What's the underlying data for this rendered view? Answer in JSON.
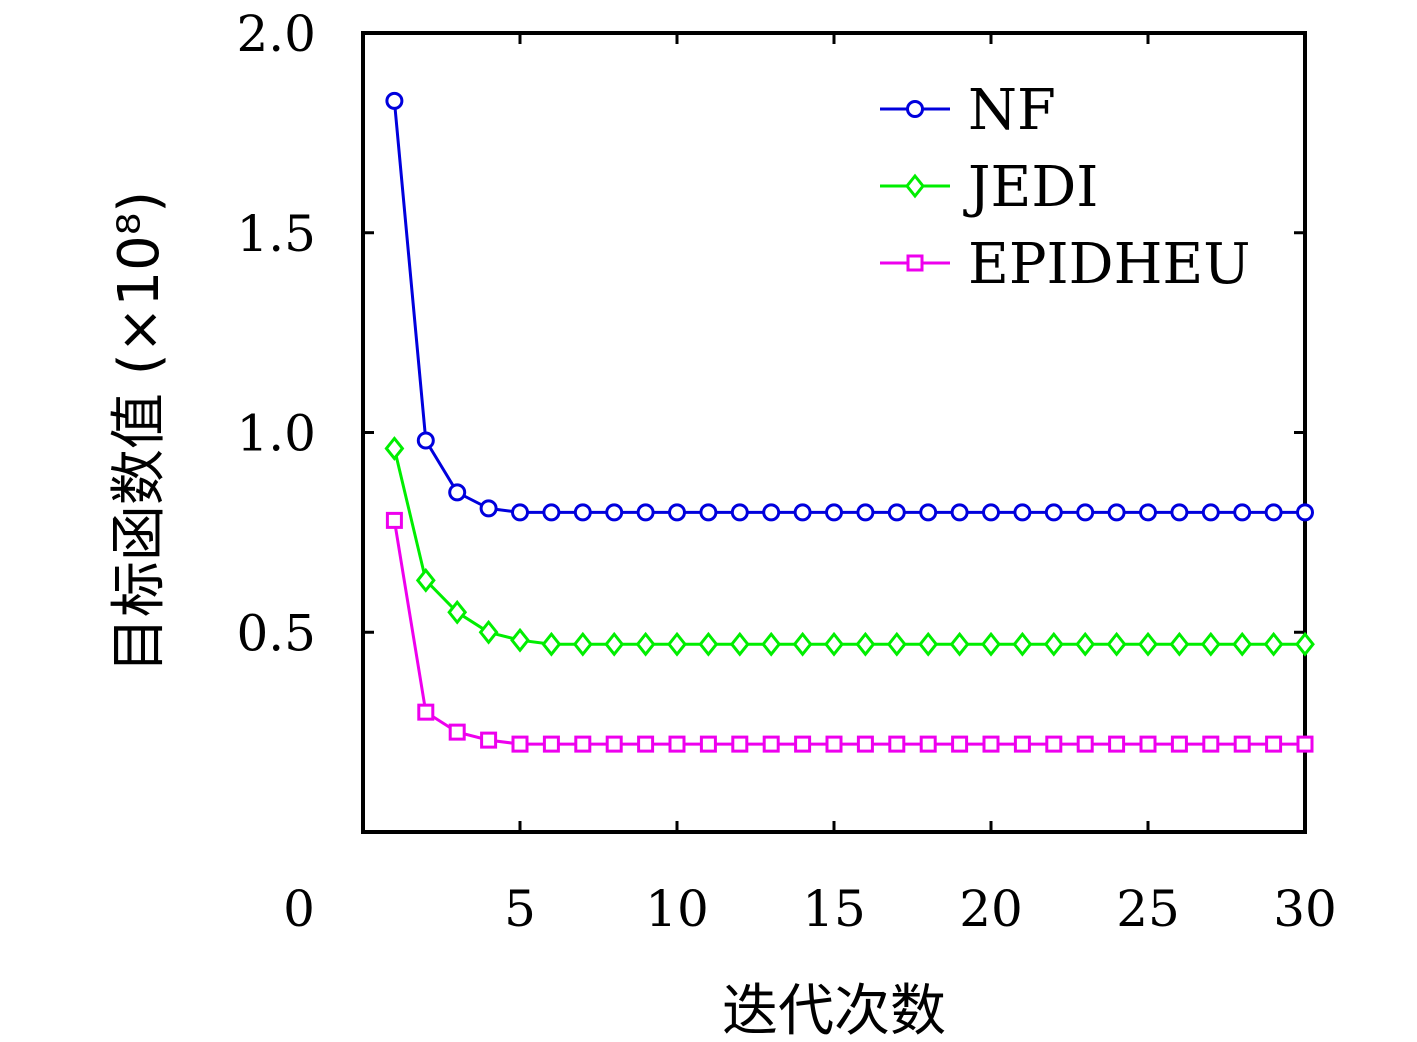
{
  "chart_data": {
    "type": "line",
    "xlabel": "迭代次数",
    "ylabel": "目标函数值 (×10⁸)",
    "xlim": [
      0,
      30
    ],
    "ylim": [
      0,
      2.0
    ],
    "x_ticks": [
      5,
      10,
      15,
      20,
      25,
      30
    ],
    "x_tick_labels": [
      "5",
      "10",
      "15",
      "20",
      "25",
      "30"
    ],
    "x_origin_label": "0",
    "y_ticks": [
      0.5,
      1.0,
      1.5,
      2.0
    ],
    "y_tick_labels": [
      "0.5",
      "1.0",
      "1.5",
      "2.0"
    ],
    "grid": false,
    "legend_position": "top-right",
    "x": [
      1,
      2,
      3,
      4,
      5,
      6,
      7,
      8,
      9,
      10,
      11,
      12,
      13,
      14,
      15,
      16,
      17,
      18,
      19,
      20,
      21,
      22,
      23,
      24,
      25,
      26,
      27,
      28,
      29,
      30
    ],
    "series": [
      {
        "name": "NF",
        "color": "#0000dd",
        "marker": "circle",
        "values": [
          1.83,
          0.98,
          0.85,
          0.81,
          0.8,
          0.8,
          0.8,
          0.8,
          0.8,
          0.8,
          0.8,
          0.8,
          0.8,
          0.8,
          0.8,
          0.8,
          0.8,
          0.8,
          0.8,
          0.8,
          0.8,
          0.8,
          0.8,
          0.8,
          0.8,
          0.8,
          0.8,
          0.8,
          0.8,
          0.8
        ]
      },
      {
        "name": "JEDI",
        "color": "#00ee00",
        "marker": "diamond",
        "values": [
          0.96,
          0.63,
          0.55,
          0.5,
          0.48,
          0.47,
          0.47,
          0.47,
          0.47,
          0.47,
          0.47,
          0.47,
          0.47,
          0.47,
          0.47,
          0.47,
          0.47,
          0.47,
          0.47,
          0.47,
          0.47,
          0.47,
          0.47,
          0.47,
          0.47,
          0.47,
          0.47,
          0.47,
          0.47,
          0.47
        ]
      },
      {
        "name": "EPIDHEU",
        "color": "#ee00ee",
        "marker": "square",
        "values": [
          0.78,
          0.3,
          0.25,
          0.23,
          0.22,
          0.22,
          0.22,
          0.22,
          0.22,
          0.22,
          0.22,
          0.22,
          0.22,
          0.22,
          0.22,
          0.22,
          0.22,
          0.22,
          0.22,
          0.22,
          0.22,
          0.22,
          0.22,
          0.22,
          0.22,
          0.22,
          0.22,
          0.22,
          0.22,
          0.22
        ]
      }
    ]
  }
}
